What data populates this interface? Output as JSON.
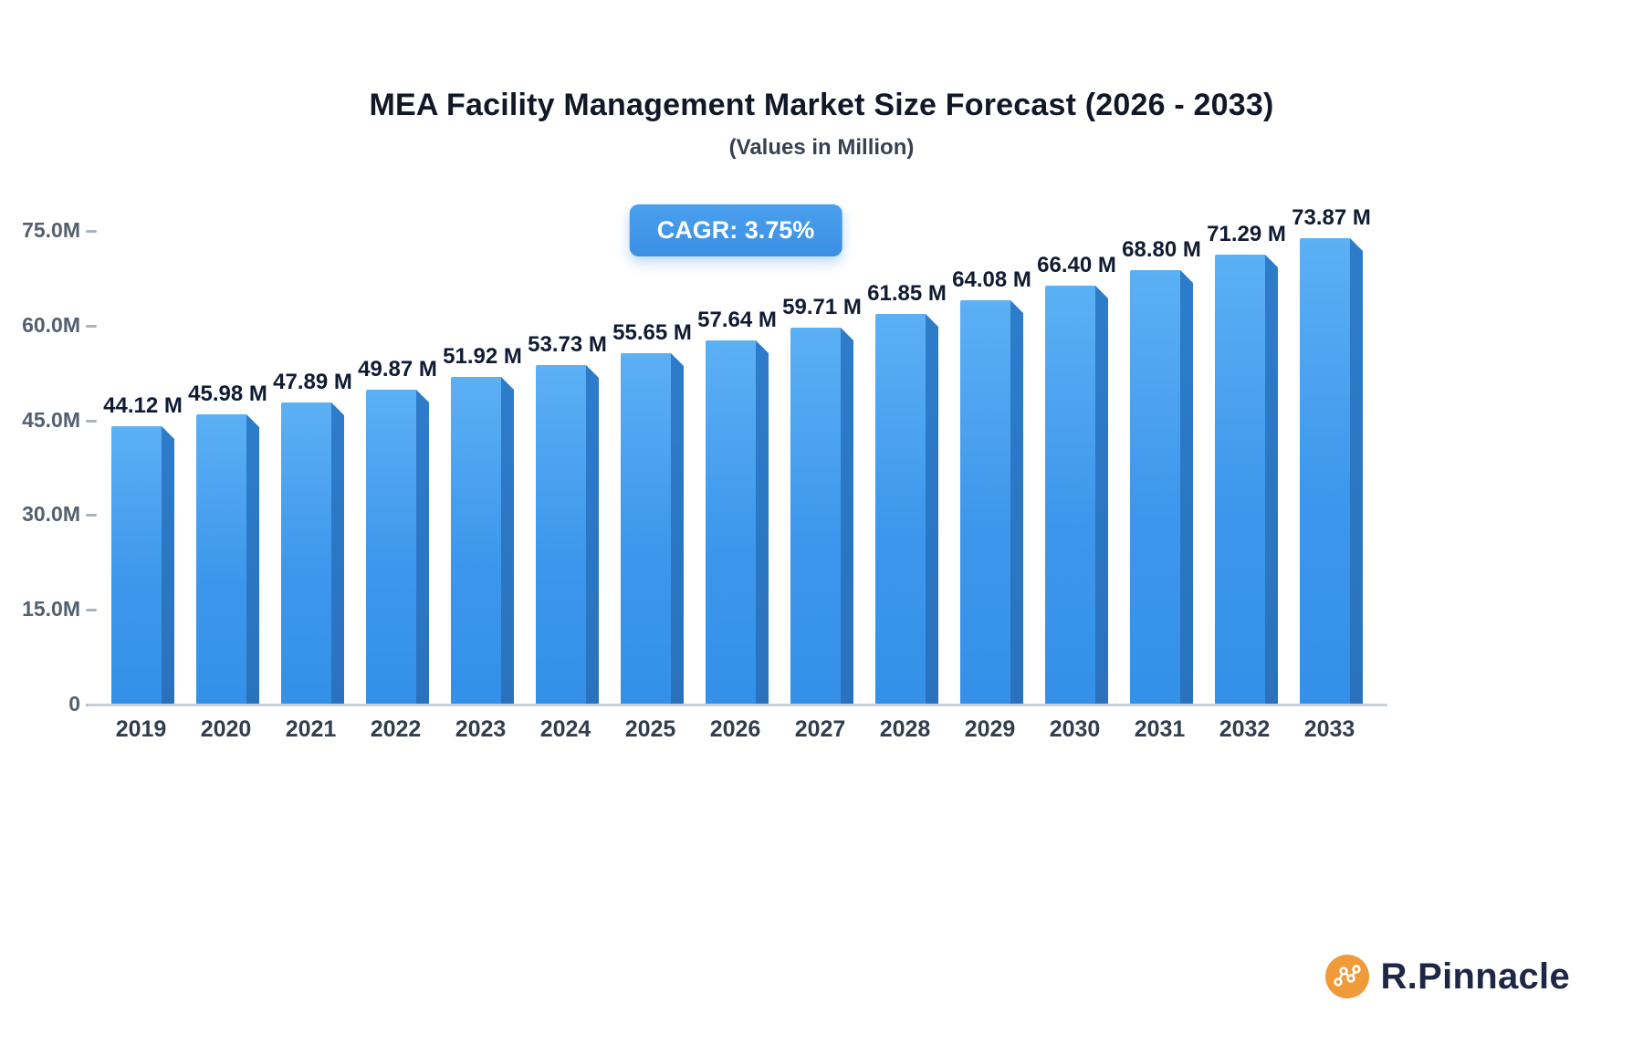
{
  "title": "MEA Facility Management Market Size Forecast (2026 - 2033)",
  "subtitle": "(Values in Million)",
  "cagr_label": "CAGR: 3.75%",
  "logo": {
    "text": "R.Pinnacle",
    "icon": "network-nodes-icon",
    "icon_color": "#f09a38"
  },
  "colors": {
    "bar_front_top": "#5cb0f4",
    "bar_front_bottom": "#3490e8",
    "bar_side": "#2a72bd",
    "badge": "#3b8fe4",
    "label_text": "#101b33",
    "axis_text": "#55606e"
  },
  "chart_data": {
    "type": "bar",
    "title": "MEA Facility Management Market Size Forecast (2026 - 2033)",
    "subtitle": "(Values in Million)",
    "categories": [
      "2019",
      "2020",
      "2021",
      "2022",
      "2023",
      "2024",
      "2025",
      "2026",
      "2027",
      "2028",
      "2029",
      "2030",
      "2031",
      "2032",
      "2033"
    ],
    "values": [
      44.12,
      45.98,
      47.89,
      49.87,
      51.92,
      53.73,
      55.65,
      57.64,
      59.71,
      61.85,
      64.08,
      66.4,
      68.8,
      71.29,
      73.87
    ],
    "data_labels": [
      "44.12 M",
      "45.98 M",
      "47.89 M",
      "49.87 M",
      "51.92 M",
      "53.73 M",
      "55.65 M",
      "57.64 M",
      "59.71 M",
      "61.85 M",
      "64.08 M",
      "66.40 M",
      "68.80 M",
      "71.29 M",
      "73.87 M"
    ],
    "xlabel": "",
    "ylabel": "",
    "ylim": [
      0,
      75
    ],
    "y_ticks": [
      0,
      15,
      30,
      45,
      60,
      75
    ],
    "y_tick_labels": [
      "0",
      "15.0M",
      "30.0M",
      "45.0M",
      "60.0M",
      "75.0M"
    ],
    "grid": false,
    "legend": "none",
    "annotation": "CAGR: 3.75%"
  }
}
